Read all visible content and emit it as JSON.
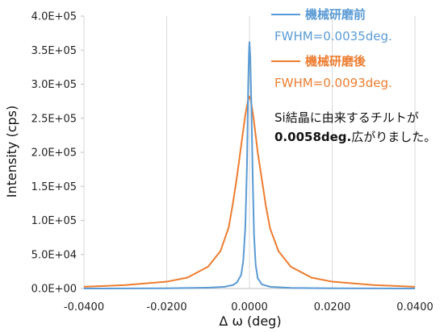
{
  "chart_data": {
    "type": "line",
    "xlabel": "Δ ω (deg)",
    "ylabel": "Intensity (cps)",
    "xlim": [
      -0.04,
      0.04
    ],
    "ylim": [
      0,
      400000
    ],
    "x_ticks": [
      "-0.0400",
      "-0.0200",
      "0.0000",
      "0.0200",
      "0.0400"
    ],
    "y_ticks": [
      "0.0E+00",
      "5.0E+04",
      "1.0E+05",
      "1.5E+05",
      "2.0E+05",
      "2.5E+05",
      "3.0E+05",
      "3.5E+05",
      "4.0E+05"
    ],
    "grid": "vertical",
    "legend_position": "top-right",
    "series": [
      {
        "name": "機械研磨前",
        "annotation": "FWHM=0.0035deg.",
        "color": "#5b9bd5",
        "points": [
          [
            -0.04,
            0
          ],
          [
            -0.02,
            300
          ],
          [
            -0.01,
            1200
          ],
          [
            -0.006,
            2500
          ],
          [
            -0.004,
            5000
          ],
          [
            -0.003,
            9000
          ],
          [
            -0.002,
            20000
          ],
          [
            -0.0015,
            40000
          ],
          [
            -0.001,
            90000
          ],
          [
            -0.0006,
            180000
          ],
          [
            -0.0003,
            300000
          ],
          [
            -0.0001,
            350000
          ],
          [
            0,
            362000
          ],
          [
            0.0002,
            340000
          ],
          [
            0.0005,
            260000
          ],
          [
            0.0008,
            160000
          ],
          [
            0.0011,
            80000
          ],
          [
            0.0015,
            35000
          ],
          [
            0.002,
            15000
          ],
          [
            0.003,
            6000
          ],
          [
            0.005,
            2500
          ],
          [
            0.01,
            900
          ],
          [
            0.02,
            300
          ],
          [
            0.04,
            0
          ]
        ]
      },
      {
        "name": "機械研磨後",
        "annotation": "FWHM=0.0093deg.",
        "color": "#ed7d31",
        "points": [
          [
            -0.04,
            2500
          ],
          [
            -0.03,
            5000
          ],
          [
            -0.02,
            10000
          ],
          [
            -0.015,
            16000
          ],
          [
            -0.01,
            32000
          ],
          [
            -0.007,
            55000
          ],
          [
            -0.005,
            90000
          ],
          [
            -0.004,
            125000
          ],
          [
            -0.003,
            165000
          ],
          [
            -0.002,
            210000
          ],
          [
            -0.001,
            255000
          ],
          [
            -0.0003,
            278000
          ],
          [
            0,
            282000
          ],
          [
            0.0003,
            278000
          ],
          [
            0.001,
            250000
          ],
          [
            0.002,
            200000
          ],
          [
            0.003,
            160000
          ],
          [
            0.004,
            120000
          ],
          [
            0.005,
            88000
          ],
          [
            0.007,
            55000
          ],
          [
            0.01,
            32000
          ],
          [
            0.015,
            16000
          ],
          [
            0.02,
            10000
          ],
          [
            0.03,
            5000
          ],
          [
            0.04,
            2500
          ]
        ]
      }
    ]
  },
  "note": {
    "line1": "Si結晶に由来するチルトが",
    "bold": "0.0058deg.",
    "rest": "広がりました。"
  }
}
